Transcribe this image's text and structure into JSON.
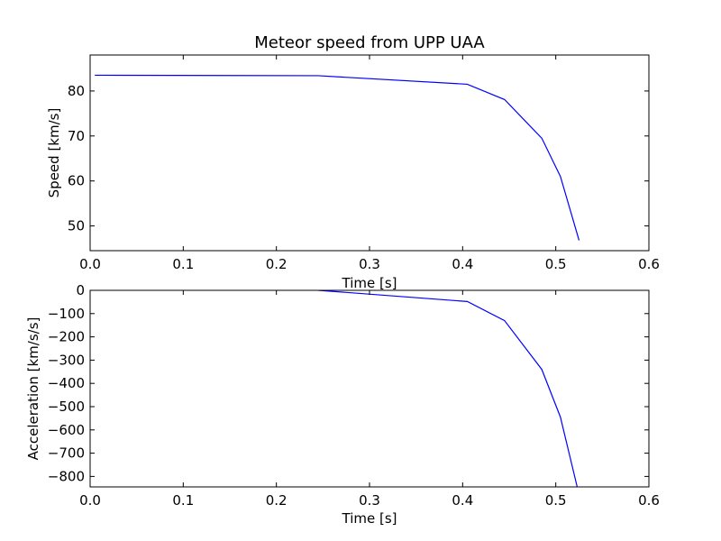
{
  "chart_data": [
    {
      "type": "line",
      "title": "Meteor speed from  UPP UAA",
      "xlabel": "Time [s]",
      "ylabel": "Speed [km/s]",
      "xlim": [
        0.0,
        0.6
      ],
      "ylim": [
        44.5,
        88
      ],
      "xticks": [
        0.0,
        0.1,
        0.2,
        0.3,
        0.4,
        0.5,
        0.6
      ],
      "xtick_labels": [
        "0.0",
        "0.1",
        "0.2",
        "0.3",
        "0.4",
        "0.5",
        "0.6"
      ],
      "yticks": [
        50,
        60,
        70,
        80
      ],
      "ytick_labels": [
        "50",
        "60",
        "70",
        "80"
      ],
      "grid": false,
      "line_color": "#0000ff",
      "series": [
        {
          "x": [
            0.005,
            0.245,
            0.405,
            0.445,
            0.485,
            0.505,
            0.525
          ],
          "y": [
            83.5,
            83.4,
            81.5,
            78.1,
            69.5,
            61.0,
            46.8
          ]
        }
      ]
    },
    {
      "type": "line",
      "title": "",
      "xlabel": "Time [s]",
      "ylabel": "Acceleration [km/s/s]",
      "xlim": [
        0.0,
        0.6
      ],
      "ylim": [
        -845,
        0
      ],
      "xticks": [
        0.0,
        0.1,
        0.2,
        0.3,
        0.4,
        0.5,
        0.6
      ],
      "xtick_labels": [
        "0.0",
        "0.1",
        "0.2",
        "0.3",
        "0.4",
        "0.5",
        "0.6"
      ],
      "yticks": [
        0,
        -100,
        -200,
        -300,
        -400,
        -500,
        -600,
        -700,
        -800
      ],
      "ytick_labels": [
        "0",
        "−100",
        "−200",
        "−300",
        "−400",
        "−500",
        "−600",
        "−700",
        "−800"
      ],
      "grid": false,
      "line_color": "#0000ff",
      "series": [
        {
          "x": [
            0.245,
            0.405,
            0.445,
            0.485,
            0.505,
            0.523
          ],
          "y": [
            0,
            -48,
            -130,
            -340,
            -545,
            -845
          ]
        }
      ]
    }
  ]
}
